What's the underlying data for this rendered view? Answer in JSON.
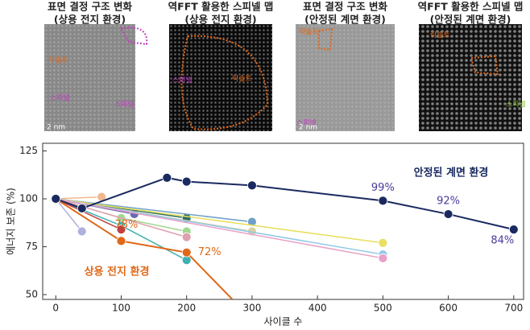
{
  "panels": [
    {
      "caption": [
        "표면 결정 구조 변화",
        "(상용 전지 환경)"
      ],
      "labels": [
        "락솔트",
        "스피넬",
        "스피넬",
        "2 nm"
      ]
    },
    {
      "caption": [
        "역FFT 활용한 스피넬 맵",
        "(상용 전지 환경)"
      ],
      "labels": [
        "스피넬",
        "락솔트"
      ]
    },
    {
      "caption": [
        "표면 결정 구조 변화",
        "(안정된 계면 환경)"
      ],
      "labels": [
        "락솔트",
        "스피넬",
        "2 nm"
      ]
    },
    {
      "caption": [
        "역FFT 활용한 스피넬 맵",
        "(안정된 계면 환경)"
      ],
      "labels": [
        "락솔트",
        "스피넬"
      ]
    }
  ],
  "chart_data": {
    "type": "line",
    "xlabel": "사이클 수",
    "ylabel": "에너지 보존 (%)",
    "xlim": [
      -20,
      715
    ],
    "ylim": [
      47.5,
      129
    ],
    "xticks": [
      0,
      100,
      200,
      300,
      400,
      500,
      600,
      700
    ],
    "yticks": [
      50,
      75,
      100,
      125
    ],
    "series": [
      {
        "color": "#f0b890",
        "x": [
          0,
          70
        ],
        "values": [
          100,
          101
        ]
      },
      {
        "color": "#b0b0e0",
        "x": [
          0,
          40
        ],
        "values": [
          100,
          83
        ]
      },
      {
        "color": "#6a6ab0",
        "x": [
          0,
          120
        ],
        "values": [
          100,
          92
        ]
      },
      {
        "color": "#2f6f5f",
        "x": [
          0,
          200
        ],
        "values": [
          100,
          90
        ]
      },
      {
        "color": "#6fa0c8",
        "x": [
          0,
          300
        ],
        "values": [
          100,
          88
        ]
      },
      {
        "color": "#d8d0a0",
        "x": [
          0,
          300
        ],
        "values": [
          100,
          83
        ]
      },
      {
        "color": "#e8e060",
        "x": [
          0,
          500
        ],
        "values": [
          100,
          77
        ]
      },
      {
        "color": "#90c8e8",
        "x": [
          0,
          500
        ],
        "values": [
          100,
          71
        ]
      },
      {
        "color": "#e8a0c8",
        "x": [
          0,
          500
        ],
        "values": [
          100,
          69
        ]
      },
      {
        "color": "#a0d890",
        "x": [
          0,
          100,
          200
        ],
        "values": [
          100,
          90,
          83
        ]
      },
      {
        "color": "#e0a0b0",
        "x": [
          0,
          200
        ],
        "values": [
          100,
          80
        ]
      },
      {
        "color": "#40b0b0",
        "x": [
          0,
          100,
          200
        ],
        "values": [
          100,
          86,
          68
        ]
      },
      {
        "color": "#c04040",
        "x": [
          0,
          100
        ],
        "values": [
          100,
          84
        ]
      },
      {
        "name": "상용 전지 환경",
        "color": "#e06818",
        "x": [
          0,
          100,
          200,
          270
        ],
        "values": [
          100,
          78,
          72,
          47.5
        ],
        "value_labels": [
          null,
          "78%",
          "72%",
          null
        ]
      },
      {
        "name": "안정된 계면 환경",
        "color": "#1a2a60",
        "x": [
          0,
          40,
          170,
          200,
          300,
          500,
          600,
          700
        ],
        "values": [
          100,
          95,
          111,
          109,
          107,
          99,
          92,
          84
        ],
        "value_labels": [
          null,
          null,
          null,
          null,
          null,
          "99%",
          "92%",
          "84%"
        ]
      }
    ]
  }
}
